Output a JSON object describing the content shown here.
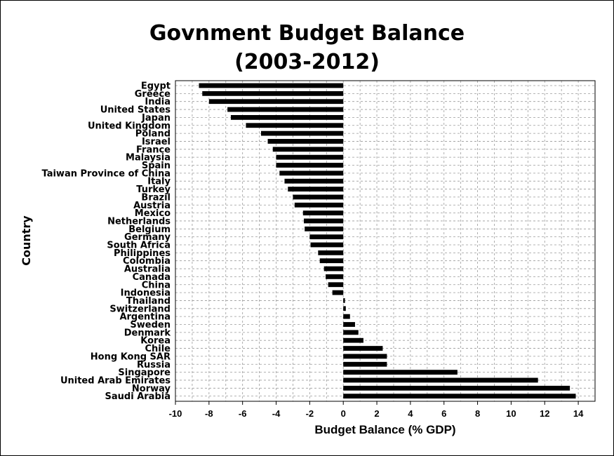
{
  "chart_data": {
    "type": "bar",
    "orientation": "horizontal",
    "title_line1": "Govnment Budget Balance",
    "title_line2": "(2003-2012)",
    "xlabel": "Budget Balance (% GDP)",
    "ylabel": "Country",
    "xlim": [
      -10,
      15
    ],
    "xticks": [
      -10,
      -8,
      -6,
      -4,
      -2,
      0,
      2,
      4,
      6,
      8,
      10,
      12,
      14
    ],
    "grid": true,
    "bar_color": "#000000",
    "categories": [
      "Egypt",
      "Greece",
      "India",
      "United States",
      "Japan",
      "United Kingdom",
      "Poland",
      "Israel",
      "France",
      "Malaysia",
      "Spain",
      "Taiwan Province of China",
      "Italy",
      "Turkey",
      "Brazil",
      "Austria",
      "Mexico",
      "Netherlands",
      "Belgium",
      "Germany",
      "South Africa",
      "Philippines",
      "Colombia",
      "Australia",
      "Canada",
      "China",
      "Indonesia",
      "Thailand",
      "Switzerland",
      "Argentina",
      "Sweden",
      "Denmark",
      "Korea",
      "Chile",
      "Hong Kong SAR",
      "Russia",
      "Singapore",
      "United Arab Emirates",
      "Norway",
      "Saudi Arabia"
    ],
    "values": [
      -8.6,
      -8.4,
      -8.0,
      -6.9,
      -6.7,
      -5.8,
      -4.9,
      -4.5,
      -4.2,
      -4.0,
      -4.0,
      -3.8,
      -3.5,
      -3.3,
      -3.0,
      -2.9,
      -2.4,
      -2.35,
      -2.3,
      -2.0,
      -1.95,
      -1.5,
      -1.4,
      -1.15,
      -1.05,
      -0.9,
      -0.65,
      0.1,
      0.15,
      0.4,
      0.7,
      0.9,
      1.2,
      2.35,
      2.6,
      2.6,
      6.8,
      11.6,
      13.5,
      13.85
    ]
  }
}
